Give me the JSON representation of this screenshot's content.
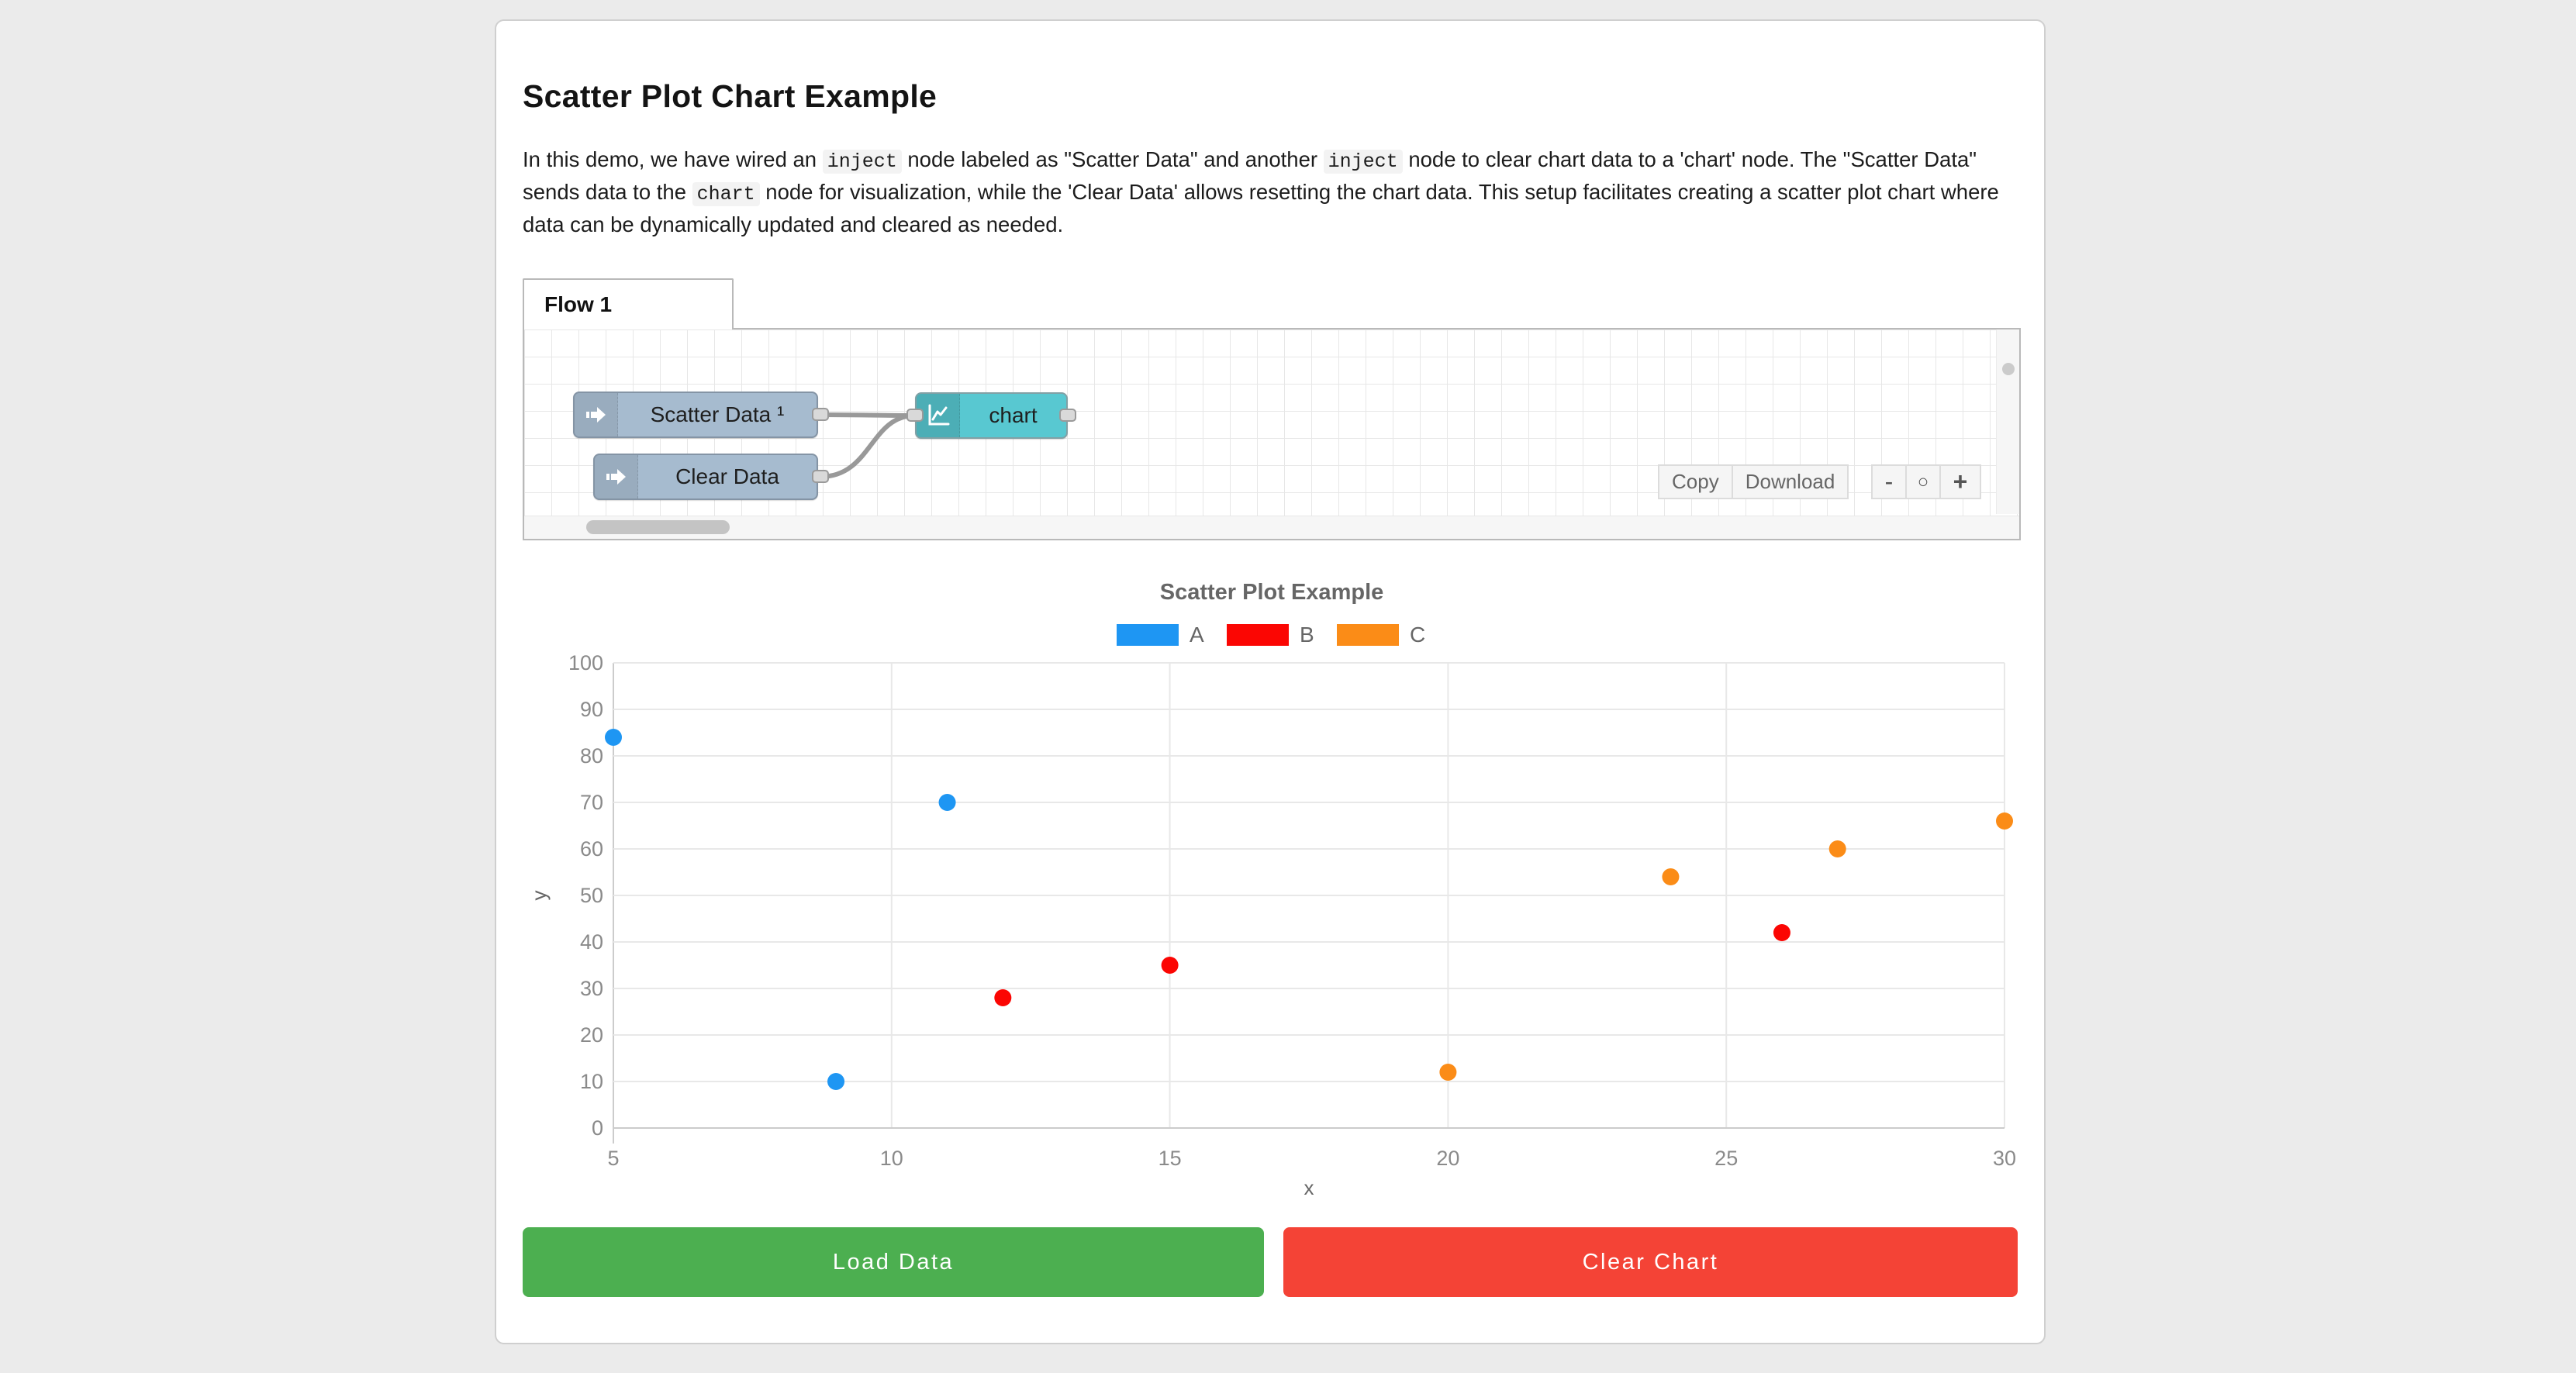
{
  "header": {
    "title": "Scatter Plot Chart Example"
  },
  "description": {
    "segments": [
      {
        "type": "text",
        "value": "In this demo, we have wired an "
      },
      {
        "type": "code",
        "value": "inject"
      },
      {
        "type": "text",
        "value": " node labeled as \"Scatter Data\" and another "
      },
      {
        "type": "code",
        "value": "inject"
      },
      {
        "type": "text",
        "value": " node to clear chart data to a 'chart' node. The \"Scatter Data\" sends data to the "
      },
      {
        "type": "code",
        "value": "chart"
      },
      {
        "type": "text",
        "value": " node for visualization, while the 'Clear Data' allows resetting the chart data. This setup facilitates creating a scatter plot chart where data can be dynamically updated and cleared as needed."
      }
    ]
  },
  "flow_editor": {
    "tab_label": "Flow 1",
    "nodes": [
      {
        "id": "scatter-data",
        "label": "Scatter Data ¹",
        "type": "inject",
        "color": "#a6bbcf",
        "icon": "inject-arrow-icon"
      },
      {
        "id": "clear-data",
        "label": "Clear Data",
        "type": "inject",
        "color": "#a6bbcf",
        "icon": "inject-arrow-icon"
      },
      {
        "id": "chart",
        "label": "chart",
        "type": "chart",
        "color": "#58c8d1",
        "icon": "line-chart-icon"
      }
    ],
    "wire_color": "#999999",
    "port_color": "#d9d9d9",
    "toolbar": {
      "copy_label": "Copy",
      "download_label": "Download"
    },
    "zoom_controls": {
      "zoom_out": "-",
      "zoom_reset": "○",
      "zoom_in": "+"
    }
  },
  "chart_data": {
    "type": "scatter",
    "title": "Scatter Plot Example",
    "xlabel": "x",
    "ylabel": "y",
    "xlim": [
      5,
      30
    ],
    "ylim": [
      0,
      100
    ],
    "x_ticks": [
      5,
      10,
      15,
      20,
      25,
      30
    ],
    "y_ticks": [
      0,
      10,
      20,
      30,
      40,
      50,
      60,
      70,
      80,
      90,
      100
    ],
    "grid": true,
    "legend_position": "top-center",
    "series": [
      {
        "name": "A",
        "color": "#1e96f3",
        "points": [
          [
            5,
            84
          ],
          [
            9,
            10
          ],
          [
            11,
            70
          ]
        ]
      },
      {
        "name": "B",
        "color": "#fb0603",
        "points": [
          [
            12,
            28
          ],
          [
            15,
            35
          ],
          [
            26,
            42
          ]
        ]
      },
      {
        "name": "C",
        "color": "#fb8c17",
        "points": [
          [
            20,
            12
          ],
          [
            24,
            54
          ],
          [
            27,
            60
          ],
          [
            30,
            66
          ]
        ]
      }
    ]
  },
  "actions": {
    "load_label": "Load Data",
    "load_color": "#4caf50",
    "clear_label": "Clear Chart",
    "clear_color": "#f44336"
  }
}
